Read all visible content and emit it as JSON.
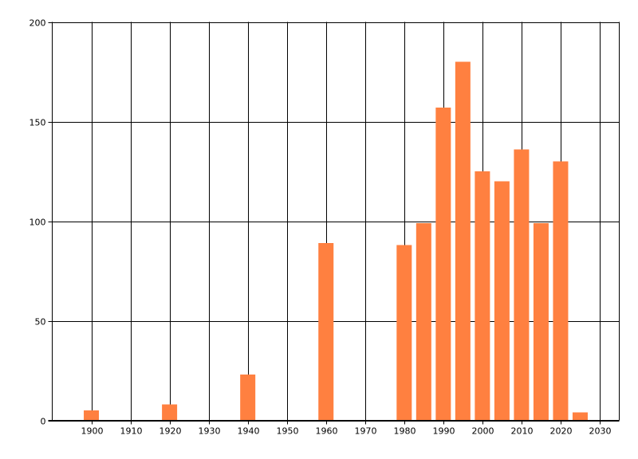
{
  "chart_data": {
    "type": "bar",
    "title": "",
    "xlabel": "",
    "ylabel": "",
    "x": [
      1900,
      1920,
      1940,
      1960,
      1980,
      1985,
      1990,
      1995,
      2000,
      2005,
      2010,
      2015,
      2020,
      2025
    ],
    "values": [
      5,
      8,
      23,
      89,
      88,
      99,
      157,
      180,
      125,
      120,
      136,
      99,
      130,
      4
    ],
    "xlim": [
      1890,
      2035
    ],
    "ylim": [
      0,
      200
    ],
    "x_ticks": [
      1900,
      1910,
      1920,
      1930,
      1940,
      1950,
      1960,
      1970,
      1980,
      1990,
      2000,
      2010,
      2020,
      2030
    ],
    "y_ticks": [
      0,
      50,
      100,
      150,
      200
    ],
    "grid": true,
    "legend": "none",
    "bar_color": "#ff8040"
  }
}
